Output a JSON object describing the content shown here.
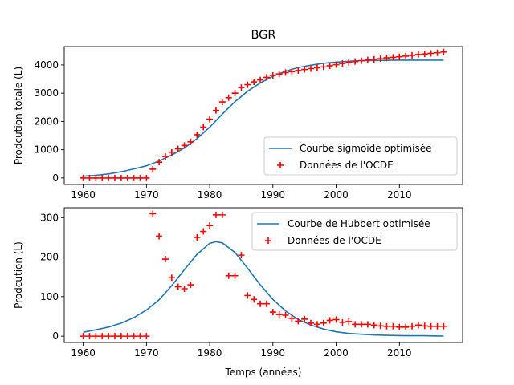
{
  "title": "BGR",
  "chart_data": [
    {
      "type": "line",
      "title": "BGR",
      "xlabel": "",
      "ylabel": "Prodcution totale (L)",
      "xlim": [
        1957,
        2020
      ],
      "ylim": [
        -230,
        4650
      ],
      "xticks": [
        1960,
        1970,
        1980,
        1990,
        2000,
        2010
      ],
      "yticks": [
        0,
        1000,
        2000,
        3000,
        4000
      ],
      "legend_position": "lower-right",
      "line_color": "#1f77b4",
      "marker_color": "#ff0000",
      "legend": [
        "Courbe sigmoïde optimisée",
        "Données de l'OCDE"
      ],
      "fit_curve": {
        "name": "Courbe sigmoïde optimisée",
        "x": [
          1960,
          1962,
          1964,
          1966,
          1968,
          1970,
          1972,
          1974,
          1976,
          1978,
          1980,
          1982,
          1984,
          1986,
          1988,
          1990,
          1992,
          1994,
          1996,
          1998,
          2000,
          2002,
          2004,
          2006,
          2008,
          2010,
          2012,
          2014,
          2016,
          2017
        ],
        "y": [
          62,
          95,
          145,
          222,
          320,
          430,
          600,
          810,
          1060,
          1390,
          1800,
          2260,
          2700,
          3070,
          3360,
          3600,
          3780,
          3910,
          3990,
          4060,
          4100,
          4130,
          4150,
          4160,
          4165,
          4170,
          4170,
          4170,
          4170,
          4170
        ]
      },
      "scatter": {
        "name": "Données de l'OCDE",
        "x": [
          1960,
          1961,
          1962,
          1963,
          1964,
          1965,
          1966,
          1967,
          1968,
          1969,
          1970,
          1971,
          1972,
          1973,
          1974,
          1975,
          1976,
          1977,
          1978,
          1979,
          1980,
          1981,
          1982,
          1983,
          1984,
          1985,
          1986,
          1987,
          1988,
          1989,
          1990,
          1991,
          1992,
          1993,
          1994,
          1995,
          1996,
          1997,
          1998,
          1999,
          2000,
          2001,
          2002,
          2003,
          2004,
          2005,
          2006,
          2007,
          2008,
          2009,
          2010,
          2011,
          2012,
          2013,
          2014,
          2015,
          2016,
          2017
        ],
        "y": [
          0,
          0,
          0,
          0,
          0,
          0,
          0,
          0,
          0,
          0,
          0,
          310,
          560,
          760,
          910,
          1030,
          1150,
          1280,
          1530,
          1800,
          2080,
          2390,
          2690,
          2840,
          3000,
          3200,
          3300,
          3400,
          3470,
          3560,
          3630,
          3680,
          3730,
          3760,
          3800,
          3840,
          3870,
          3900,
          3930,
          3970,
          4010,
          4050,
          4090,
          4120,
          4150,
          4180,
          4200,
          4220,
          4250,
          4270,
          4290,
          4310,
          4340,
          4370,
          4390,
          4410,
          4430,
          4460
        ]
      }
    },
    {
      "type": "line",
      "title": "",
      "xlabel": "Temps (années)",
      "ylabel": "Prodcution (L)",
      "xlim": [
        1957,
        2020
      ],
      "ylim": [
        -16,
        325
      ],
      "xticks": [
        1960,
        1970,
        1980,
        1990,
        2000,
        2010
      ],
      "yticks": [
        0,
        100,
        200,
        300
      ],
      "legend_position": "top-right",
      "line_color": "#1f77b4",
      "marker_color": "#ff0000",
      "legend": [
        "Courbe de Hubbert optimisée",
        "Données de l'OCDE"
      ],
      "fit_curve": {
        "name": "Courbe de Hubbert optimisée",
        "x": [
          1960,
          1962,
          1964,
          1966,
          1968,
          1970,
          1972,
          1974,
          1976,
          1978,
          1980,
          1981,
          1982,
          1984,
          1986,
          1988,
          1990,
          1992,
          1994,
          1996,
          1998,
          2000,
          2002,
          2004,
          2006,
          2008,
          2010,
          2012,
          2014,
          2016,
          2017
        ],
        "y": [
          10,
          16,
          23,
          33,
          47,
          66,
          92,
          128,
          168,
          207,
          235,
          239,
          236,
          212,
          172,
          130,
          93,
          64,
          42,
          28,
          18,
          11,
          7,
          5,
          3,
          2,
          1.5,
          1,
          1,
          0.5,
          0.5
        ]
      },
      "scatter": {
        "name": "Données de l'OCDE",
        "x": [
          1960,
          1961,
          1962,
          1963,
          1964,
          1965,
          1966,
          1967,
          1968,
          1969,
          1970,
          1971,
          1972,
          1973,
          1974,
          1975,
          1976,
          1977,
          1978,
          1979,
          1980,
          1981,
          1982,
          1983,
          1984,
          1985,
          1986,
          1987,
          1988,
          1989,
          1990,
          1991,
          1992,
          1993,
          1994,
          1995,
          1996,
          1997,
          1998,
          1999,
          2000,
          2001,
          2002,
          2003,
          2004,
          2005,
          2006,
          2007,
          2008,
          2009,
          2010,
          2011,
          2012,
          2013,
          2014,
          2015,
          2016,
          2017
        ],
        "y": [
          0,
          0,
          0,
          0,
          0,
          0,
          0,
          0,
          0,
          0,
          0,
          310,
          253,
          195,
          148,
          125,
          120,
          130,
          250,
          265,
          280,
          307,
          307,
          153,
          153,
          205,
          103,
          93,
          82,
          82,
          61,
          55,
          53,
          45,
          38,
          43,
          33,
          30,
          33,
          40,
          42,
          35,
          37,
          30,
          30,
          30,
          28,
          26,
          25,
          25,
          23,
          23,
          25,
          28,
          26,
          25,
          25,
          25
        ]
      }
    }
  ]
}
